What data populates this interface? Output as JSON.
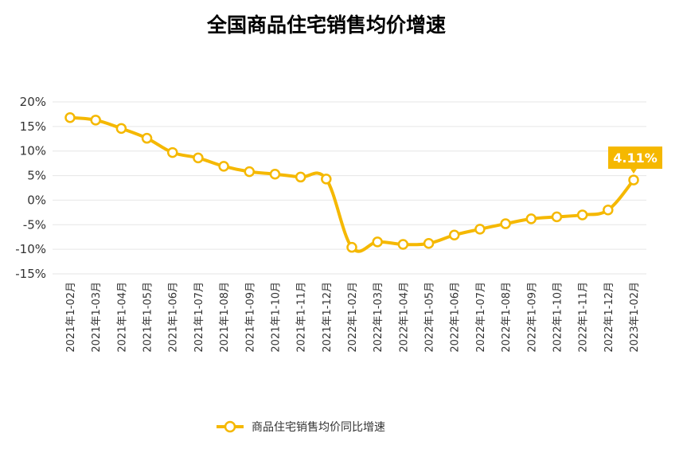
{
  "chart_data": {
    "type": "line",
    "title": "全国商品住宅销售均价增速",
    "categories": [
      "2021年1-02月",
      "2021年1-03月",
      "2021年1-04月",
      "2021年1-05月",
      "2021年1-06月",
      "2021年1-07月",
      "2021年1-08月",
      "2021年1-09月",
      "2021年1-10月",
      "2021年1-11月",
      "2021年1-12月",
      "2022年1-02月",
      "2022年1-03月",
      "2022年1-04月",
      "2022年1-05月",
      "2022年1-06月",
      "2022年1-07月",
      "2022年1-08月",
      "2022年1-09月",
      "2022年1-10月",
      "2022年1-11月",
      "2022年1-12月",
      "2023年1-02月"
    ],
    "series": [
      {
        "name": "商品住宅销售均价同比增速",
        "values": [
          16.8,
          16.3,
          14.6,
          12.6,
          9.7,
          8.6,
          6.9,
          5.8,
          5.3,
          4.7,
          4.3,
          -9.6,
          -8.5,
          -9.0,
          -8.8,
          -7.1,
          -5.9,
          -4.8,
          -3.8,
          -3.4,
          -3.0,
          -2.0,
          4.11
        ],
        "color": "#f5b800"
      }
    ],
    "ylim": [
      -15,
      20
    ],
    "yticks": [
      20,
      15,
      10,
      5,
      0,
      -5,
      -10,
      -15
    ],
    "ytick_labels": [
      "20%",
      "15%",
      "10%",
      "5%",
      "0%",
      "-5%",
      "-10%",
      "-15%"
    ],
    "xlabel": "",
    "ylabel": "",
    "grid": true,
    "legend_position": "bottom-center",
    "annotation": {
      "label": "4.11%",
      "color": "#f5b800"
    }
  }
}
